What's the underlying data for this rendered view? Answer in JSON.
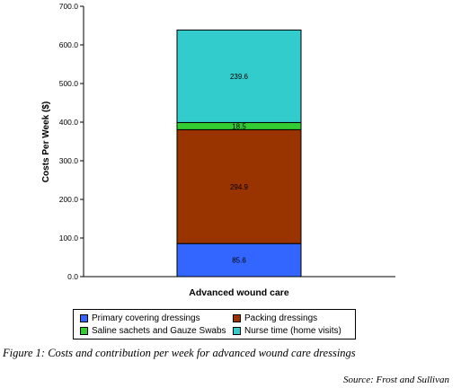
{
  "chart_data": {
    "type": "bar",
    "stacked": true,
    "categories": [
      "Advanced wound care"
    ],
    "series": [
      {
        "name": "Primary covering dressings",
        "values": [
          85.6
        ],
        "color": "#3366ff"
      },
      {
        "name": "Packing dressings",
        "values": [
          294.9
        ],
        "color": "#993300"
      },
      {
        "name": "Saline sachets and Gauze Swabs",
        "values": [
          18.5
        ],
        "color": "#33cc33"
      },
      {
        "name": "Nurse time (home visits)",
        "values": [
          239.6
        ],
        "color": "#33cccc"
      }
    ],
    "data_labels": [
      "85.6",
      "294.9",
      "18.5",
      "239.6"
    ],
    "ylabel": "Costs Per Week ($)",
    "xlabel": "",
    "ylim": [
      0,
      700
    ],
    "yticks": [
      "0.0",
      "100.0",
      "200.0",
      "300.0",
      "400.0",
      "500.0",
      "600.0",
      "700.0"
    ],
    "grid": false,
    "legend_position": "bottom"
  },
  "caption": "Figure 1: Costs and contribution per week for advanced wound care dressings",
  "source": "Source: Frost and Sullivan"
}
